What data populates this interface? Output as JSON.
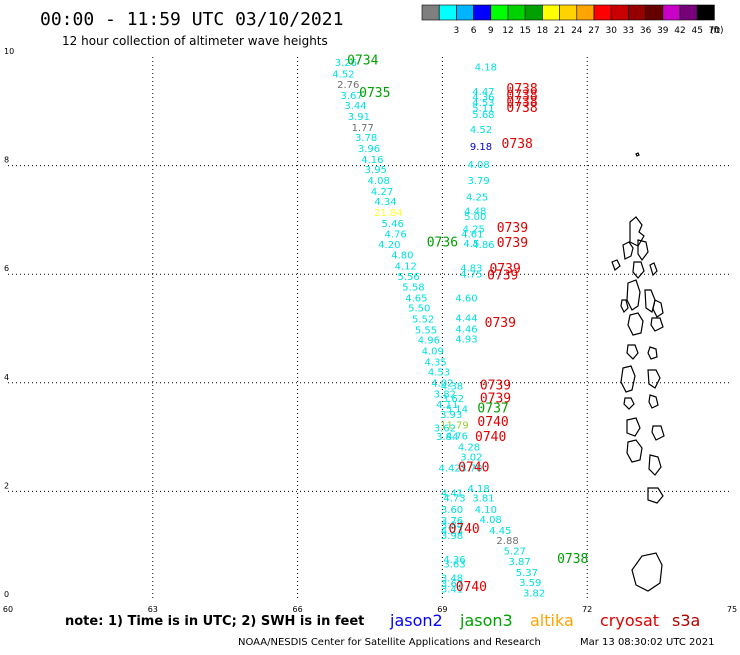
{
  "header": {
    "title": "00:00 - 11:59 UTC 03/10/2021",
    "subtitle": "12 hour collection of altimeter wave heights"
  },
  "legend": {
    "unit": "(ft)",
    "swatches": [
      {
        "label": "",
        "color": "#7f7f7f"
      },
      {
        "label": "3",
        "color": "#00ffff"
      },
      {
        "label": "6",
        "color": "#00b4ff"
      },
      {
        "label": "9",
        "color": "#0000ff"
      },
      {
        "label": "12",
        "color": "#00ff00"
      },
      {
        "label": "15",
        "color": "#00d200"
      },
      {
        "label": "18",
        "color": "#00a000"
      },
      {
        "label": "21",
        "color": "#ffff00"
      },
      {
        "label": "24",
        "color": "#ffd200"
      },
      {
        "label": "27",
        "color": "#ffa500"
      },
      {
        "label": "30",
        "color": "#ff0000"
      },
      {
        "label": "33",
        "color": "#c80000"
      },
      {
        "label": "36",
        "color": "#960000"
      },
      {
        "label": "39",
        "color": "#640000"
      },
      {
        "label": "42",
        "color": "#c800c8"
      },
      {
        "label": "45",
        "color": "#780078"
      },
      {
        "label": "70",
        "color": "#000000"
      }
    ]
  },
  "map": {
    "lat_range": [
      0,
      10
    ],
    "lon_range": [
      60,
      75
    ],
    "lat_ticks": [
      "0",
      "2",
      "4",
      "6",
      "8",
      "10"
    ],
    "lon_ticks": [
      "60",
      "63",
      "66",
      "69",
      "72",
      "75"
    ],
    "colors": {
      "cyan": "#00e0e0",
      "gray": "#707070",
      "yellow": "#ffff30",
      "blue": "#0000c8",
      "green": "#00a000",
      "lightgreen": "#9acd32",
      "red": "#e00000",
      "darkred": "#b00000"
    },
    "swh_labels": [
      {
        "lon": 67.0,
        "lat": 9.83,
        "text": "3.26",
        "color": "cyan"
      },
      {
        "lon": 66.95,
        "lat": 9.62,
        "text": "4.52",
        "color": "cyan"
      },
      {
        "lon": 67.05,
        "lat": 9.43,
        "text": "2.76",
        "color": "gray"
      },
      {
        "lon": 67.12,
        "lat": 9.23,
        "text": "3.67",
        "color": "cyan"
      },
      {
        "lon": 67.2,
        "lat": 9.04,
        "text": "3.44",
        "color": "cyan"
      },
      {
        "lon": 67.27,
        "lat": 8.84,
        "text": "3.91",
        "color": "cyan"
      },
      {
        "lon": 67.35,
        "lat": 8.64,
        "text": "1.77",
        "color": "gray"
      },
      {
        "lon": 67.42,
        "lat": 8.45,
        "text": "3.78",
        "color": "cyan"
      },
      {
        "lon": 67.48,
        "lat": 8.25,
        "text": "3.96",
        "color": "cyan"
      },
      {
        "lon": 67.55,
        "lat": 8.05,
        "text": "4.16",
        "color": "cyan"
      },
      {
        "lon": 67.62,
        "lat": 7.86,
        "text": "3.95",
        "color": "cyan"
      },
      {
        "lon": 67.68,
        "lat": 7.66,
        "text": "4.08",
        "color": "cyan"
      },
      {
        "lon": 67.75,
        "lat": 7.46,
        "text": "4.27",
        "color": "cyan"
      },
      {
        "lon": 67.82,
        "lat": 7.27,
        "text": "4.34",
        "color": "cyan"
      },
      {
        "lon": 67.88,
        "lat": 7.07,
        "text": "21.84",
        "color": "yellow"
      },
      {
        "lon": 67.97,
        "lat": 6.87,
        "text": "5.46",
        "color": "cyan"
      },
      {
        "lon": 68.03,
        "lat": 6.68,
        "text": "4.76",
        "color": "cyan"
      },
      {
        "lon": 67.9,
        "lat": 6.48,
        "text": "4.20",
        "color": "cyan"
      },
      {
        "lon": 68.17,
        "lat": 6.29,
        "text": "4.80",
        "color": "cyan"
      },
      {
        "lon": 68.24,
        "lat": 6.09,
        "text": "4.12",
        "color": "cyan"
      },
      {
        "lon": 68.3,
        "lat": 5.89,
        "text": "5.56",
        "color": "cyan"
      },
      {
        "lon": 68.4,
        "lat": 5.7,
        "text": "5.58",
        "color": "cyan"
      },
      {
        "lon": 68.46,
        "lat": 5.5,
        "text": "4.65",
        "color": "cyan"
      },
      {
        "lon": 68.52,
        "lat": 5.31,
        "text": "5.50",
        "color": "cyan"
      },
      {
        "lon": 68.6,
        "lat": 5.11,
        "text": "5.52",
        "color": "cyan"
      },
      {
        "lon": 68.66,
        "lat": 4.91,
        "text": "5.55",
        "color": "cyan"
      },
      {
        "lon": 68.72,
        "lat": 4.72,
        "text": "4.96",
        "color": "cyan"
      },
      {
        "lon": 68.8,
        "lat": 4.52,
        "text": "4.09",
        "color": "cyan"
      },
      {
        "lon": 68.86,
        "lat": 4.32,
        "text": "4.35",
        "color": "cyan"
      },
      {
        "lon": 68.93,
        "lat": 4.13,
        "text": "4.53",
        "color": "cyan"
      },
      {
        "lon": 69.0,
        "lat": 3.93,
        "text": "4.02",
        "color": "cyan"
      },
      {
        "lon": 69.2,
        "lat": 3.88,
        "text": "4.38",
        "color": "cyan"
      },
      {
        "lon": 69.05,
        "lat": 3.73,
        "text": "3.82",
        "color": "cyan"
      },
      {
        "lon": 69.22,
        "lat": 3.65,
        "text": "3.62",
        "color": "cyan"
      },
      {
        "lon": 69.1,
        "lat": 3.54,
        "text": "4.11",
        "color": "cyan"
      },
      {
        "lon": 69.3,
        "lat": 3.45,
        "text": "5.14",
        "color": "cyan"
      },
      {
        "lon": 69.18,
        "lat": 3.35,
        "text": "3.93",
        "color": "cyan"
      },
      {
        "lon": 69.25,
        "lat": 3.16,
        "text": "11.79",
        "color": "lightgreen"
      },
      {
        "lon": 69.05,
        "lat": 3.1,
        "text": "3.62",
        "color": "cyan"
      },
      {
        "lon": 69.3,
        "lat": 2.96,
        "text": "4.76",
        "color": "cyan"
      },
      {
        "lon": 69.1,
        "lat": 2.95,
        "text": "3.84",
        "color": "cyan"
      },
      {
        "lon": 69.55,
        "lat": 2.75,
        "text": "4.28",
        "color": "cyan"
      },
      {
        "lon": 69.6,
        "lat": 2.57,
        "text": "3.02",
        "color": "cyan"
      },
      {
        "lon": 69.15,
        "lat": 2.37,
        "text": "4.42",
        "color": "cyan"
      },
      {
        "lon": 69.6,
        "lat": 2.37,
        "text": "3.70",
        "color": "cyan"
      },
      {
        "lon": 69.75,
        "lat": 1.99,
        "text": "4.18",
        "color": "cyan"
      },
      {
        "lon": 69.2,
        "lat": 1.91,
        "text": "4.41",
        "color": "cyan"
      },
      {
        "lon": 69.25,
        "lat": 1.81,
        "text": "4.73",
        "color": "cyan"
      },
      {
        "lon": 69.85,
        "lat": 1.81,
        "text": "3.81",
        "color": "cyan"
      },
      {
        "lon": 69.2,
        "lat": 1.6,
        "text": "3.60",
        "color": "cyan"
      },
      {
        "lon": 69.9,
        "lat": 1.6,
        "text": "4.10",
        "color": "cyan"
      },
      {
        "lon": 69.2,
        "lat": 1.4,
        "text": "3.76",
        "color": "cyan"
      },
      {
        "lon": 70.0,
        "lat": 1.42,
        "text": "4.08",
        "color": "cyan"
      },
      {
        "lon": 69.2,
        "lat": 1.32,
        "text": "3.84",
        "color": "cyan"
      },
      {
        "lon": 69.2,
        "lat": 1.22,
        "text": "4.23",
        "color": "cyan"
      },
      {
        "lon": 70.2,
        "lat": 1.22,
        "text": "4.45",
        "color": "cyan"
      },
      {
        "lon": 69.2,
        "lat": 1.12,
        "text": "3.98",
        "color": "cyan"
      },
      {
        "lon": 70.35,
        "lat": 1.03,
        "text": "2.88",
        "color": "gray"
      },
      {
        "lon": 70.5,
        "lat": 0.84,
        "text": "5.27",
        "color": "cyan"
      },
      {
        "lon": 69.25,
        "lat": 0.68,
        "text": "4.36",
        "color": "cyan"
      },
      {
        "lon": 69.25,
        "lat": 0.6,
        "text": "3.63",
        "color": "cyan"
      },
      {
        "lon": 70.6,
        "lat": 0.64,
        "text": "3.87",
        "color": "cyan"
      },
      {
        "lon": 70.75,
        "lat": 0.44,
        "text": "5.37",
        "color": "cyan"
      },
      {
        "lon": 69.2,
        "lat": 0.34,
        "text": "3.48",
        "color": "cyan"
      },
      {
        "lon": 69.2,
        "lat": 0.24,
        "text": "3.67",
        "color": "cyan"
      },
      {
        "lon": 70.82,
        "lat": 0.26,
        "text": "3.59",
        "color": "cyan"
      },
      {
        "lon": 69.2,
        "lat": 0.14,
        "text": "3.41",
        "color": "cyan"
      },
      {
        "lon": 70.9,
        "lat": 0.06,
        "text": "3.82",
        "color": "cyan"
      },
      {
        "lon": 69.9,
        "lat": 9.75,
        "text": "4.18",
        "color": "cyan"
      },
      {
        "lon": 69.85,
        "lat": 9.3,
        "text": "4.47",
        "color": "cyan"
      },
      {
        "lon": 69.85,
        "lat": 9.2,
        "text": "4.36",
        "color": "cyan"
      },
      {
        "lon": 69.85,
        "lat": 9.1,
        "text": "4.53",
        "color": "cyan"
      },
      {
        "lon": 69.85,
        "lat": 9.0,
        "text": "5.11",
        "color": "cyan"
      },
      {
        "lon": 69.85,
        "lat": 8.88,
        "text": "5.68",
        "color": "cyan"
      },
      {
        "lon": 69.8,
        "lat": 8.6,
        "text": "4.52",
        "color": "cyan"
      },
      {
        "lon": 69.8,
        "lat": 8.29,
        "text": "9.18",
        "color": "blue"
      },
      {
        "lon": 69.75,
        "lat": 7.96,
        "text": "4.08",
        "color": "cyan"
      },
      {
        "lon": 69.75,
        "lat": 7.66,
        "text": "3.79",
        "color": "cyan"
      },
      {
        "lon": 69.72,
        "lat": 7.36,
        "text": "4.25",
        "color": "cyan"
      },
      {
        "lon": 69.68,
        "lat": 7.1,
        "text": "4.48",
        "color": "cyan"
      },
      {
        "lon": 69.68,
        "lat": 7.0,
        "text": "5.00",
        "color": "cyan"
      },
      {
        "lon": 69.65,
        "lat": 6.77,
        "text": "4.25",
        "color": "cyan"
      },
      {
        "lon": 69.62,
        "lat": 6.68,
        "text": "4.61",
        "color": "cyan"
      },
      {
        "lon": 69.85,
        "lat": 6.48,
        "text": "4.86",
        "color": "cyan"
      },
      {
        "lon": 69.6,
        "lat": 6.5,
        "text": "4.5",
        "color": "cyan"
      },
      {
        "lon": 69.6,
        "lat": 6.05,
        "text": "4.83",
        "color": "cyan"
      },
      {
        "lon": 69.6,
        "lat": 5.94,
        "text": "4.75",
        "color": "cyan"
      },
      {
        "lon": 69.5,
        "lat": 5.5,
        "text": "4.60",
        "color": "cyan"
      },
      {
        "lon": 69.5,
        "lat": 5.13,
        "text": "4.44",
        "color": "cyan"
      },
      {
        "lon": 69.5,
        "lat": 4.93,
        "text": "4.46",
        "color": "cyan"
      },
      {
        "lon": 69.5,
        "lat": 4.74,
        "text": "4.93",
        "color": "cyan"
      }
    ],
    "time_labels": [
      {
        "lon": 67.35,
        "lat": 9.86,
        "text": "0734",
        "color": "green"
      },
      {
        "lon": 67.6,
        "lat": 9.26,
        "text": "0735",
        "color": "green"
      },
      {
        "lon": 69.0,
        "lat": 6.51,
        "text": "0736",
        "color": "green"
      },
      {
        "lon": 70.65,
        "lat": 9.34,
        "text": "0738",
        "color": "red"
      },
      {
        "lon": 70.65,
        "lat": 9.22,
        "text": "0738",
        "color": "red"
      },
      {
        "lon": 70.65,
        "lat": 9.1,
        "text": "0738",
        "color": "red"
      },
      {
        "lon": 70.65,
        "lat": 8.99,
        "text": "0738",
        "color": "red"
      },
      {
        "lon": 70.55,
        "lat": 8.32,
        "text": "0738",
        "color": "red"
      },
      {
        "lon": 70.45,
        "lat": 6.78,
        "text": "0739",
        "color": "red"
      },
      {
        "lon": 70.45,
        "lat": 6.5,
        "text": "0739",
        "color": "red"
      },
      {
        "lon": 70.3,
        "lat": 6.02,
        "text": "0739",
        "color": "red"
      },
      {
        "lon": 70.25,
        "lat": 5.9,
        "text": "0739",
        "color": "red"
      },
      {
        "lon": 70.2,
        "lat": 5.03,
        "text": "0739",
        "color": "red"
      },
      {
        "lon": 70.1,
        "lat": 3.88,
        "text": "0739",
        "color": "red"
      },
      {
        "lon": 70.1,
        "lat": 3.64,
        "text": "0739",
        "color": "red"
      },
      {
        "lon": 70.05,
        "lat": 3.45,
        "text": "0737",
        "color": "green"
      },
      {
        "lon": 70.05,
        "lat": 3.2,
        "text": "0740",
        "color": "red"
      },
      {
        "lon": 70.0,
        "lat": 2.93,
        "text": "0740",
        "color": "red"
      },
      {
        "lon": 69.65,
        "lat": 2.37,
        "text": "0740",
        "color": "red"
      },
      {
        "lon": 69.45,
        "lat": 1.23,
        "text": "0740",
        "color": "red"
      },
      {
        "lon": 71.7,
        "lat": 0.68,
        "text": "0738",
        "color": "green"
      },
      {
        "lon": 69.6,
        "lat": 0.17,
        "text": "0740",
        "color": "red"
      }
    ]
  },
  "footer": {
    "note": "note: 1) Time is in UTC; 2) SWH is in feet",
    "satellites": [
      {
        "name": "jason2",
        "color": "#0000ff"
      },
      {
        "name": "jason3",
        "color": "#00a000"
      },
      {
        "name": "altika",
        "color": "#ffa500"
      },
      {
        "name": "cryosat",
        "color": "#e00000"
      },
      {
        "name": "s3a",
        "color": "#b00000"
      }
    ],
    "credit": "NOAA/NESDIS Center for Satellite Applications and Research",
    "timestamp": "Mar 13 08:30:02 UTC 2021"
  }
}
